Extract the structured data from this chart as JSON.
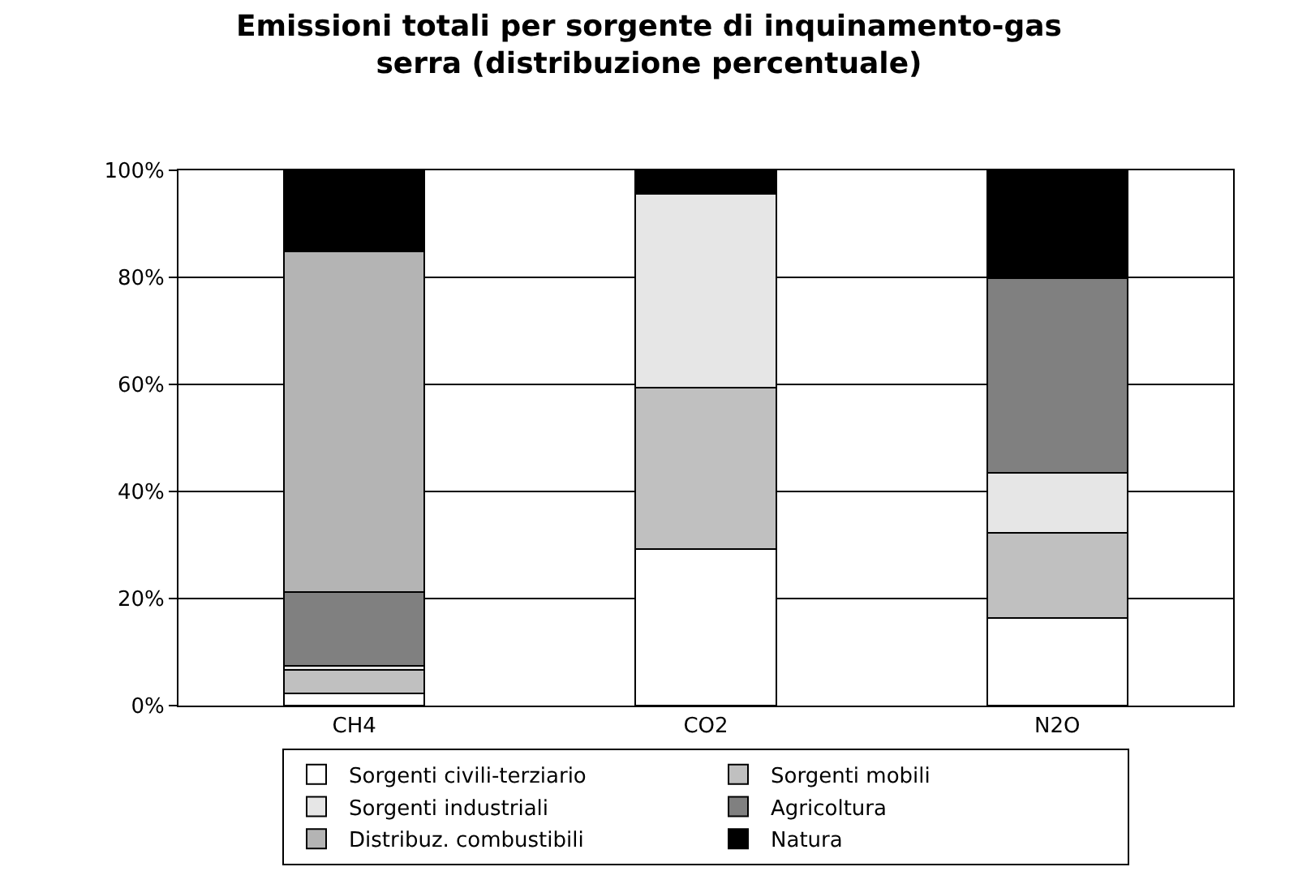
{
  "chart_data": {
    "type": "bar",
    "stacked": true,
    "title": "Emissioni totali per sorgente di inquinamento-gas\nserra (distribuzione percentuale)",
    "categories": [
      "CH4",
      "CO2",
      "N2O"
    ],
    "series": [
      {
        "name": "Sorgenti civili-terziario",
        "color": "#ffffff",
        "values": [
          2.3,
          29.3,
          16.4
        ]
      },
      {
        "name": "Sorgenti mobili",
        "color": "#c0c0c0",
        "values": [
          4.4,
          30.1,
          15.9
        ]
      },
      {
        "name": "Sorgenti industriali",
        "color": "#e6e6e6",
        "values": [
          0.7,
          36.2,
          11.2
        ]
      },
      {
        "name": "Agricoltura",
        "color": "#808080",
        "values": [
          13.8,
          0,
          36.4
        ]
      },
      {
        "name": "Distribuz. combustibili",
        "color": "#b4b4b4",
        "values": [
          63.6,
          0,
          0
        ]
      },
      {
        "name": "Natura",
        "color": "#000000",
        "values": [
          15.2,
          4.4,
          20.1
        ]
      }
    ],
    "ylim": [
      0,
      100
    ],
    "yticks": [
      {
        "value": 0,
        "label": "0%"
      },
      {
        "value": 20,
        "label": "20%"
      },
      {
        "value": 40,
        "label": "40%"
      },
      {
        "value": 60,
        "label": "60%"
      },
      {
        "value": 80,
        "label": "80%"
      },
      {
        "value": 100,
        "label": "100%"
      }
    ],
    "grid": "y",
    "legend": "bottom"
  }
}
